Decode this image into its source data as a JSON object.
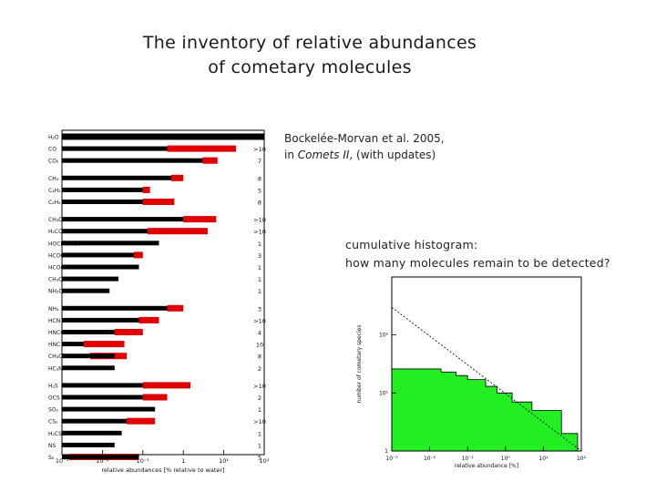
{
  "slide": {
    "title_line1": "The inventory of relative abundances",
    "title_line2": "of cometary molecules",
    "citation_prefix": "Bockelée-Morvan et al. 2005,",
    "citation_in": "in ",
    "citation_book": "Comets II",
    "citation_suffix": ", (with updates)",
    "caption_line1": "cumulative histogram:",
    "caption_line2": "how many molecules remain to be detected?"
  },
  "chart_data": [
    {
      "type": "bar",
      "orientation": "horizontal",
      "xscale": "log",
      "xlim": [
        0.001,
        100
      ],
      "xticks": [
        "10⁻³",
        "10⁻²",
        "10⁻¹",
        "1",
        "10¹",
        "10²"
      ],
      "xlabel": "relative abundances [% relative to water]",
      "colors": {
        "range": "#000000",
        "upper": "#e00000"
      },
      "categories": [
        "H₂O",
        "CO",
        "CO₂",
        "CH₄",
        "C₂H₂",
        "C₂H₆",
        "CH₃OH",
        "H₂CO",
        "HOCH₂CH₂OH",
        "HCOOH",
        "HCOOCH₃",
        "CH₃CHO",
        "NH₂CHO",
        "NH₃",
        "HCN",
        "HNCO",
        "HNC",
        "CH₃CN",
        "HC₃N",
        "H₂S",
        "OCS",
        "SO₂",
        "CS₂",
        "H₂CS",
        "NS",
        "S₂"
      ],
      "series": [
        {
          "name": "range_low",
          "values": [
            100,
            0.001,
            0.001,
            0.001,
            0.001,
            0.001,
            0.001,
            0.001,
            0.001,
            0.001,
            0.001,
            0.001,
            0.001,
            0.001,
            0.001,
            0.001,
            0.001,
            0.001,
            0.001,
            0.001,
            0.001,
            0.001,
            0.001,
            0.001,
            0.001,
            0.001
          ]
        },
        {
          "name": "black_high",
          "values": [
            100,
            0.4,
            3,
            0.5,
            0.1,
            0.1,
            1,
            0.13,
            0.25,
            0.06,
            0.08,
            0.025,
            0.015,
            0.4,
            0.08,
            0.02,
            0.0035,
            0.02,
            0.02,
            0.1,
            0.1,
            0.2,
            0.04,
            0.03,
            0.02,
            0.08
          ]
        },
        {
          "name": "red_high",
          "values": [
            null,
            20,
            7,
            1,
            0.15,
            0.6,
            6.5,
            4,
            null,
            0.1,
            null,
            null,
            null,
            1,
            0.25,
            0.1,
            0.035,
            0.04,
            null,
            1.5,
            0.4,
            null,
            0.2,
            null,
            null,
            0.08
          ]
        }
      ],
      "factors": [
        "",
        ">10",
        "7",
        "8",
        "5",
        "8",
        ">10",
        ">10",
        "1",
        "3",
        "1",
        "1",
        "1",
        "3",
        ">10",
        "4",
        "10",
        "8",
        "2",
        ">10",
        "2",
        "1",
        ">10",
        "1",
        "1",
        "5"
      ],
      "red_low": [
        null,
        0.4,
        3,
        0.5,
        0.1,
        0.1,
        1,
        0.13,
        null,
        0.06,
        null,
        null,
        null,
        0.4,
        0.08,
        0.02,
        0.0035,
        0.005,
        null,
        0.1,
        0.1,
        null,
        0.04,
        null,
        null,
        0.0015
      ]
    },
    {
      "type": "area",
      "xscale": "log",
      "yscale": "log",
      "xlim": [
        0.001,
        100
      ],
      "ylim": [
        1,
        1000
      ],
      "xticks": [
        "10⁻³",
        "10⁻²",
        "10⁻¹",
        "10⁰",
        "10¹",
        "10²"
      ],
      "yticks": [
        "1",
        "10¹",
        "10²"
      ],
      "xlabel": "relative abundance [%]",
      "ylabel": "number of cometary species",
      "fill_color": "#22ee22",
      "steps": {
        "x": [
          0.001,
          0.02,
          0.05,
          0.1,
          0.3,
          0.6,
          1.5,
          5,
          30,
          80,
          100
        ],
        "y": [
          26,
          23,
          20,
          17,
          13,
          10,
          7,
          5,
          2,
          1,
          1
        ]
      },
      "fit_line": {
        "x": [
          0.001,
          100
        ],
        "y": [
          300,
          1
        ]
      }
    }
  ]
}
